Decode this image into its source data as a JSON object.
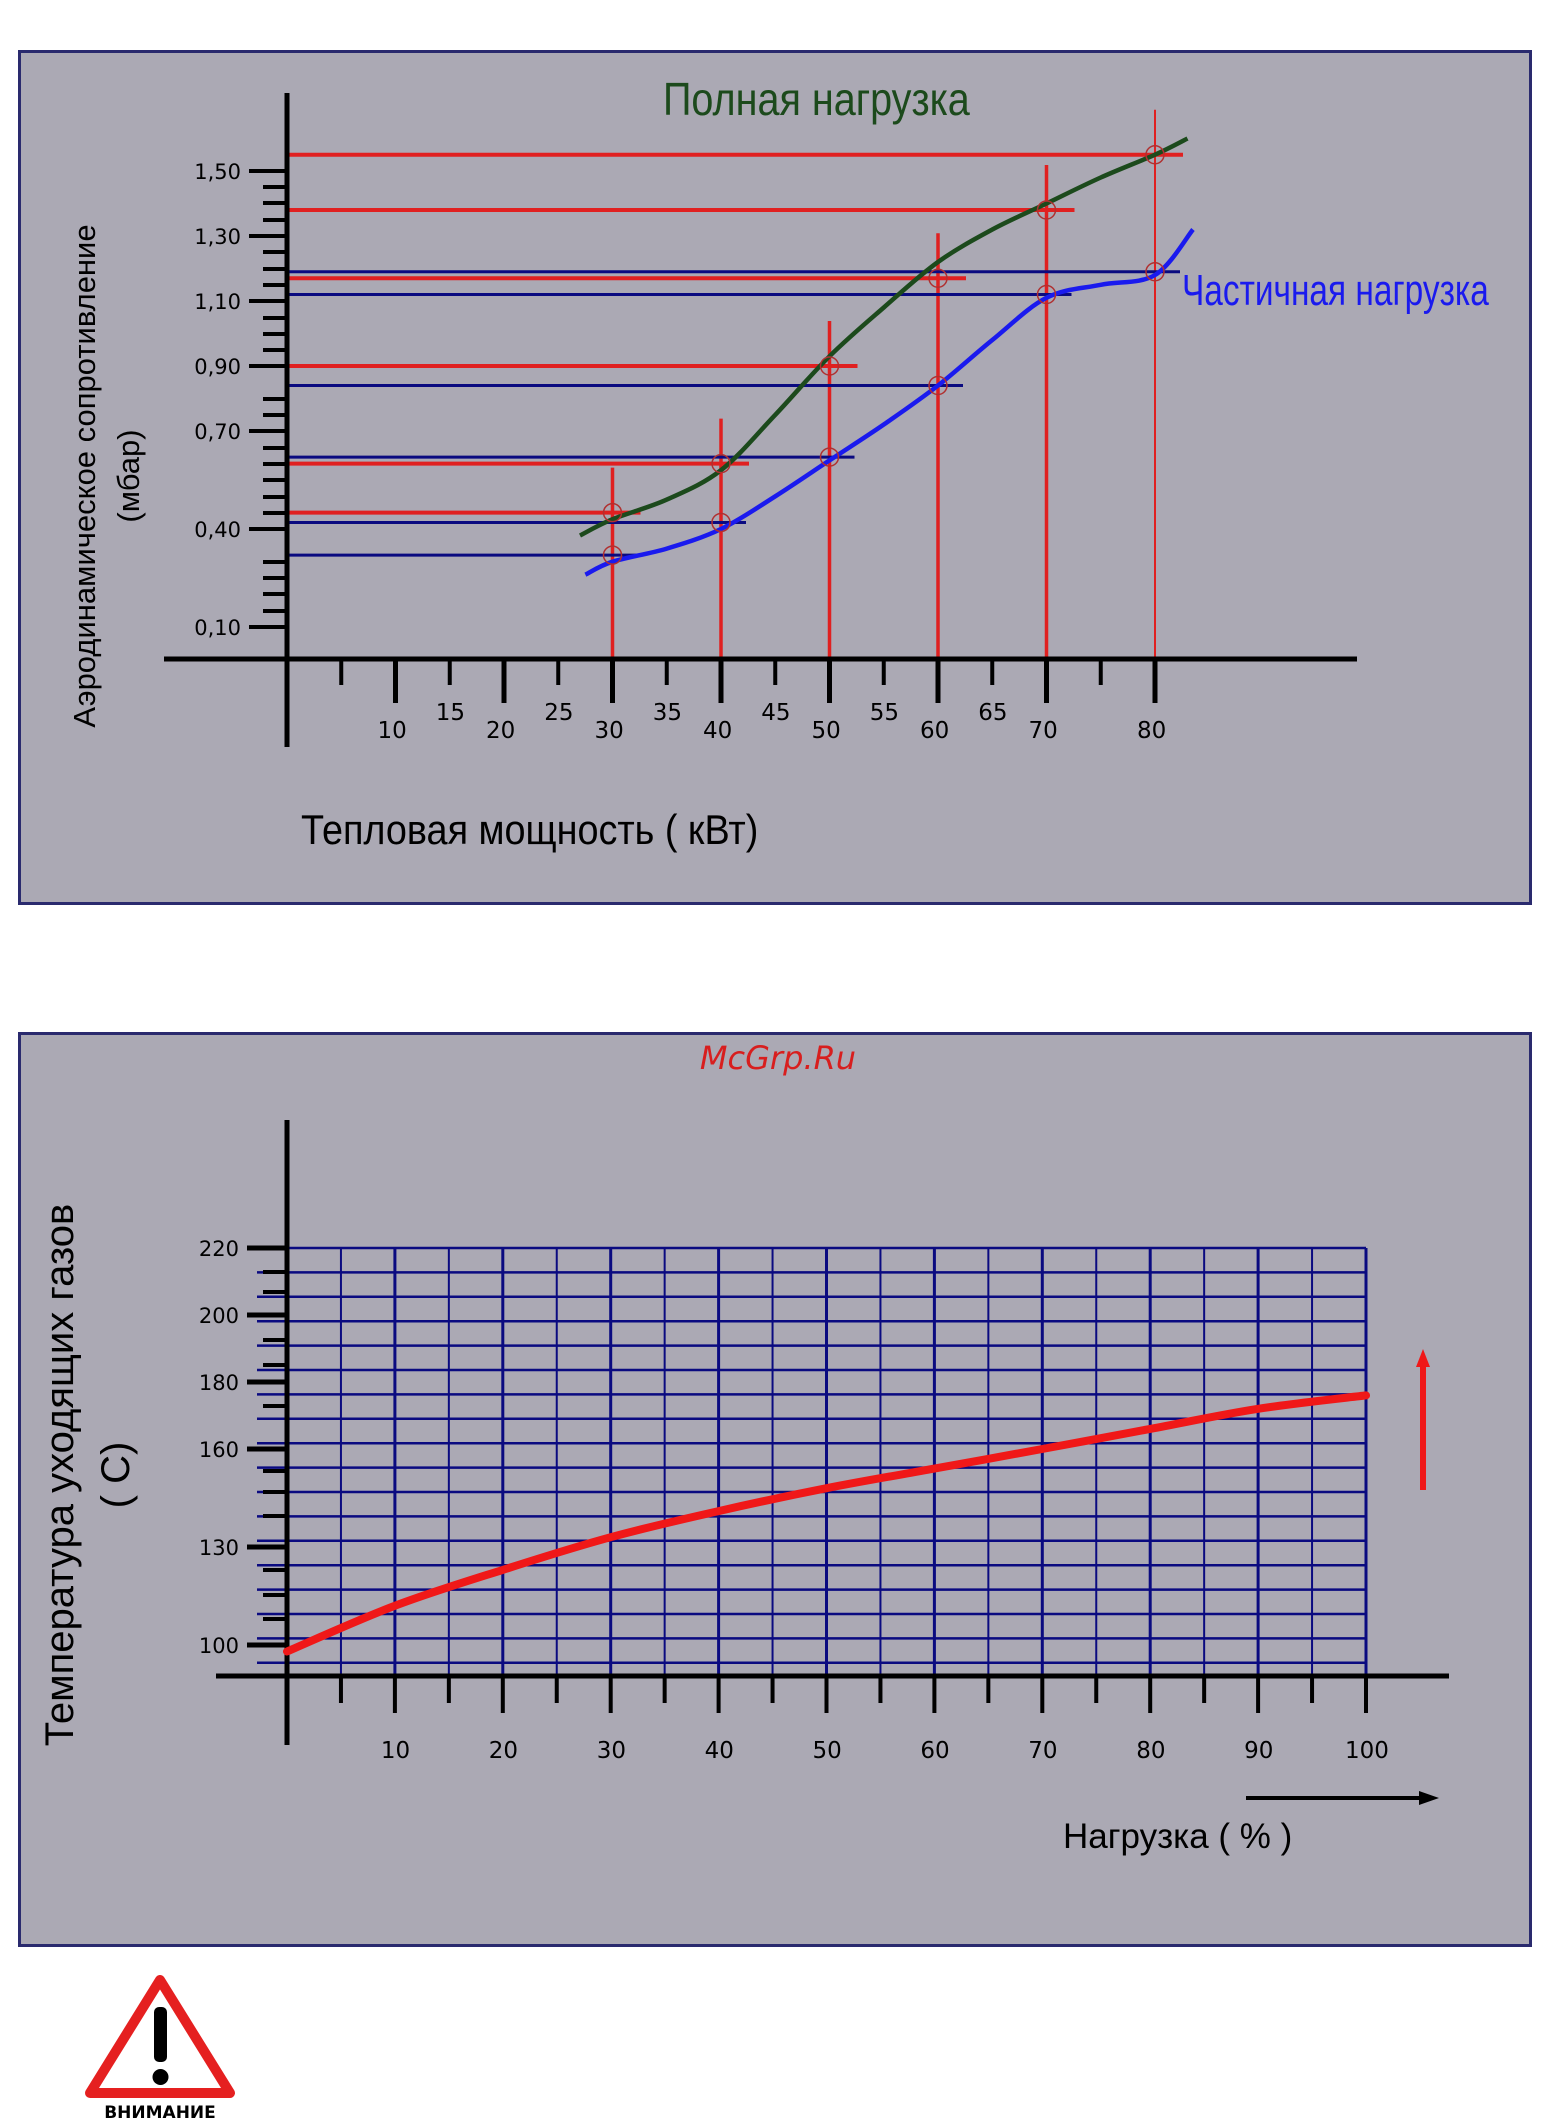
{
  "watermark": "McGrp.Ru",
  "warning": {
    "label": "ВНИМАНИЕ",
    "icon": "warning-triangle-icon"
  },
  "colors": {
    "panel_bg": "#aba9b4",
    "border": "#2a2a6e",
    "full_load": "#1c4a1c",
    "partial_load": "#1a1aee",
    "red_lines": "#e02020",
    "navy_lines": "#0a0a80",
    "temp_curve": "#f01818"
  },
  "chart_data": [
    {
      "type": "line",
      "title": "Полная нагрузка",
      "xlabel": "Тепловая мощность ( кВт)",
      "ylabel": "Аэродинамическое сопротивление",
      "ylabel2": "(мбар)",
      "x_ticks_major": [
        "10",
        "20",
        "30",
        "40",
        "50",
        "60",
        "70",
        "80"
      ],
      "x_ticks_minor": [
        "15",
        "25",
        "35",
        "45",
        "55",
        "65"
      ],
      "y_ticks": [
        "0,10",
        "0,40",
        "0,70",
        "0,90",
        "1,10",
        "1,30",
        "1,50"
      ],
      "series": [
        {
          "name": "Полная нагрузка",
          "x": [
            27,
            30,
            35,
            40,
            45,
            50,
            55,
            60,
            65,
            70,
            75,
            80,
            83
          ],
          "y": [
            0.38,
            0.43,
            0.49,
            0.58,
            0.75,
            0.93,
            1.08,
            1.22,
            1.32,
            1.4,
            1.48,
            1.55,
            1.6
          ]
        },
        {
          "name": "Частичная нагрузка",
          "x": [
            27.5,
            30,
            35,
            40,
            45,
            50,
            55,
            60,
            65,
            70,
            75,
            80,
            83.5
          ],
          "y": [
            0.26,
            0.3,
            0.34,
            0.4,
            0.5,
            0.61,
            0.72,
            0.84,
            0.98,
            1.11,
            1.15,
            1.18,
            1.32
          ]
        }
      ],
      "reference_levels": {
        "full": [
          {
            "x": 30,
            "y": 0.45
          },
          {
            "x": 40,
            "y": 0.6
          },
          {
            "x": 50,
            "y": 0.9
          },
          {
            "x": 60,
            "y": 1.17
          },
          {
            "x": 70,
            "y": 1.38
          },
          {
            "x": 80,
            "y": 1.55
          }
        ],
        "partial": [
          {
            "x": 30,
            "y": 0.32
          },
          {
            "x": 40,
            "y": 0.42
          },
          {
            "x": 50,
            "y": 0.62
          },
          {
            "x": 60,
            "y": 0.84
          },
          {
            "x": 70,
            "y": 1.12
          },
          {
            "x": 80,
            "y": 1.19
          }
        ]
      },
      "xlim": [
        0,
        100
      ],
      "grid": false
    },
    {
      "type": "line",
      "xlabel": "Нагрузка ( % )",
      "ylabel": "Температура уходящих газов",
      "ylabel2": "( С)",
      "x_ticks": [
        "10",
        "20",
        "30",
        "40",
        "50",
        "60",
        "70",
        "80",
        "90",
        "100"
      ],
      "y_ticks": [
        "100",
        "130",
        "160",
        "180",
        "200",
        "220"
      ],
      "series": [
        {
          "name": "",
          "x": [
            0,
            10,
            20,
            30,
            40,
            50,
            60,
            70,
            80,
            90,
            100
          ],
          "y": [
            98,
            112,
            123,
            133,
            141,
            148,
            154,
            160,
            166,
            172,
            176
          ]
        }
      ],
      "xlim": [
        0,
        100
      ],
      "ylim": [
        90,
        220
      ],
      "grid": true
    }
  ]
}
